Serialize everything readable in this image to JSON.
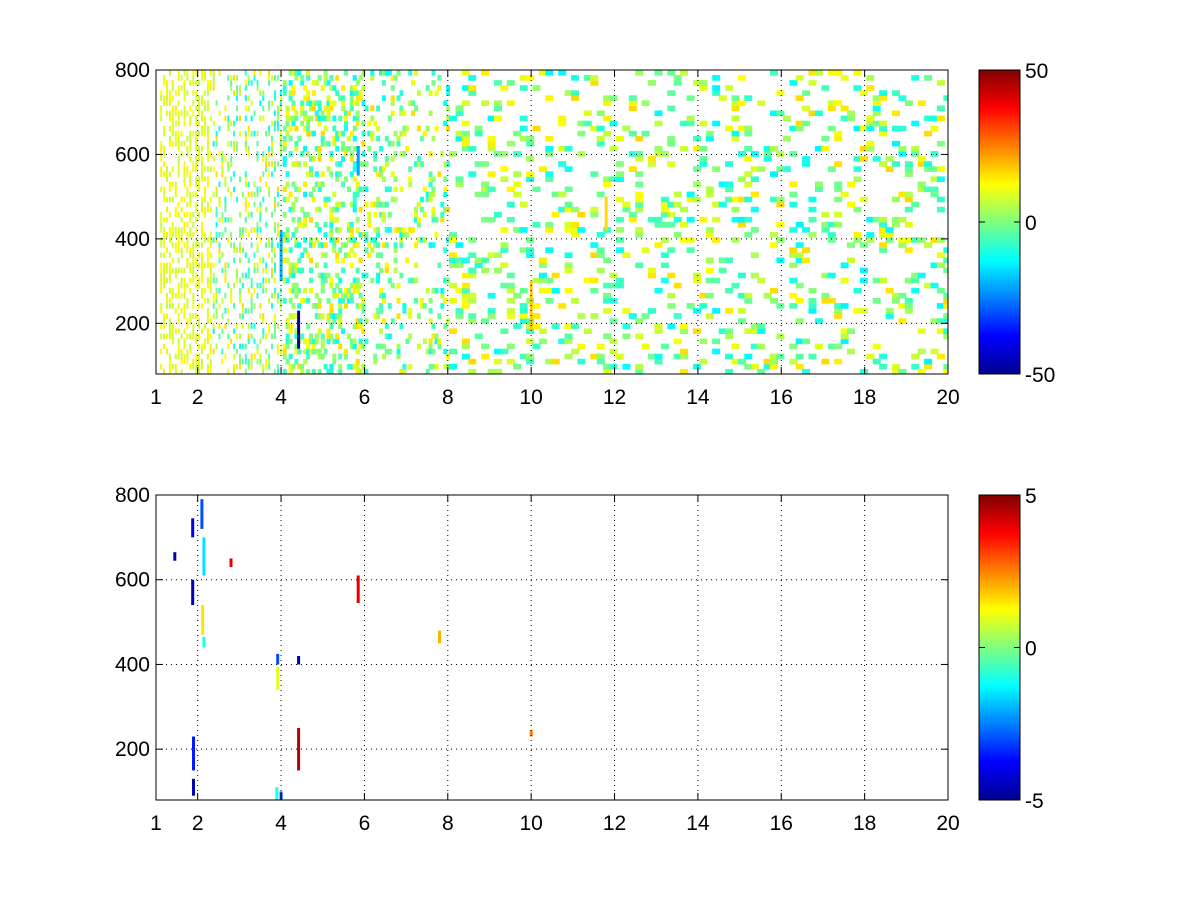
{
  "chart_data": [
    {
      "type": "heatmap",
      "title": "",
      "xlabel": "",
      "ylabel": "",
      "xlim": [
        1,
        20
      ],
      "ylim": [
        80,
        800
      ],
      "x_ticks": [
        "1",
        "2",
        "4",
        "6",
        "8",
        "10",
        "12",
        "14",
        "16",
        "18",
        "20"
      ],
      "y_ticks": [
        "200",
        "400",
        "600",
        "800"
      ],
      "grid": true,
      "colormap": "jet",
      "clim": [
        -50,
        50
      ],
      "colorbar_ticks": [
        "50",
        "0",
        "-50"
      ],
      "description_of_values": "dense sparse field of small values (mostly near 0, between about -15 and 15), with a single strong negative streak near x=4.4, y=150-230 reaching about -50 and a few near -20 around x=5.8, y=550-620",
      "streaks": [
        {
          "x": 4.42,
          "y0": 140,
          "y1": 230,
          "value": -48
        },
        {
          "x": 4.0,
          "y0": 300,
          "y1": 420,
          "value": -20
        },
        {
          "x": 5.85,
          "y0": 550,
          "y1": 620,
          "value": -22
        },
        {
          "x": 10.0,
          "y0": 180,
          "y1": 300,
          "value": 18
        },
        {
          "x": 11.8,
          "y0": 420,
          "y1": 500,
          "value": 16
        }
      ]
    },
    {
      "type": "heatmap",
      "title": "",
      "xlabel": "",
      "ylabel": "",
      "xlim": [
        1,
        20
      ],
      "ylim": [
        80,
        800
      ],
      "x_ticks": [
        "1",
        "2",
        "4",
        "6",
        "8",
        "10",
        "12",
        "14",
        "16",
        "18",
        "20"
      ],
      "y_ticks": [
        "200",
        "400",
        "600",
        "800"
      ],
      "grid": true,
      "colormap": "jet",
      "clim": [
        -5,
        5
      ],
      "colorbar_ticks": [
        "5",
        "0",
        "-5"
      ],
      "streaks": [
        {
          "x": 1.45,
          "y0": 645,
          "y1": 665,
          "value": -4.5
        },
        {
          "x": 1.88,
          "y0": 700,
          "y1": 745,
          "value": -4
        },
        {
          "x": 1.88,
          "y0": 540,
          "y1": 600,
          "value": -4.5
        },
        {
          "x": 1.9,
          "y0": 150,
          "y1": 230,
          "value": -3.5
        },
        {
          "x": 1.9,
          "y0": 90,
          "y1": 130,
          "value": -4.5
        },
        {
          "x": 2.1,
          "y0": 720,
          "y1": 790,
          "value": -3
        },
        {
          "x": 2.15,
          "y0": 610,
          "y1": 700,
          "value": -1.5
        },
        {
          "x": 2.12,
          "y0": 470,
          "y1": 540,
          "value": 1.5
        },
        {
          "x": 2.15,
          "y0": 440,
          "y1": 465,
          "value": -1
        },
        {
          "x": 2.8,
          "y0": 630,
          "y1": 650,
          "value": 4
        },
        {
          "x": 3.92,
          "y0": 400,
          "y1": 425,
          "value": -3
        },
        {
          "x": 3.92,
          "y0": 340,
          "y1": 395,
          "value": 1
        },
        {
          "x": 3.9,
          "y0": 80,
          "y1": 110,
          "value": -1
        },
        {
          "x": 4.0,
          "y0": 80,
          "y1": 100,
          "value": -3
        },
        {
          "x": 4.42,
          "y0": 400,
          "y1": 420,
          "value": -4.5
        },
        {
          "x": 4.42,
          "y0": 150,
          "y1": 250,
          "value": 4.5
        },
        {
          "x": 5.85,
          "y0": 545,
          "y1": 610,
          "value": 4
        },
        {
          "x": 7.8,
          "y0": 450,
          "y1": 480,
          "value": 2
        },
        {
          "x": 10.0,
          "y0": 230,
          "y1": 245,
          "value": 2.5
        }
      ]
    }
  ]
}
